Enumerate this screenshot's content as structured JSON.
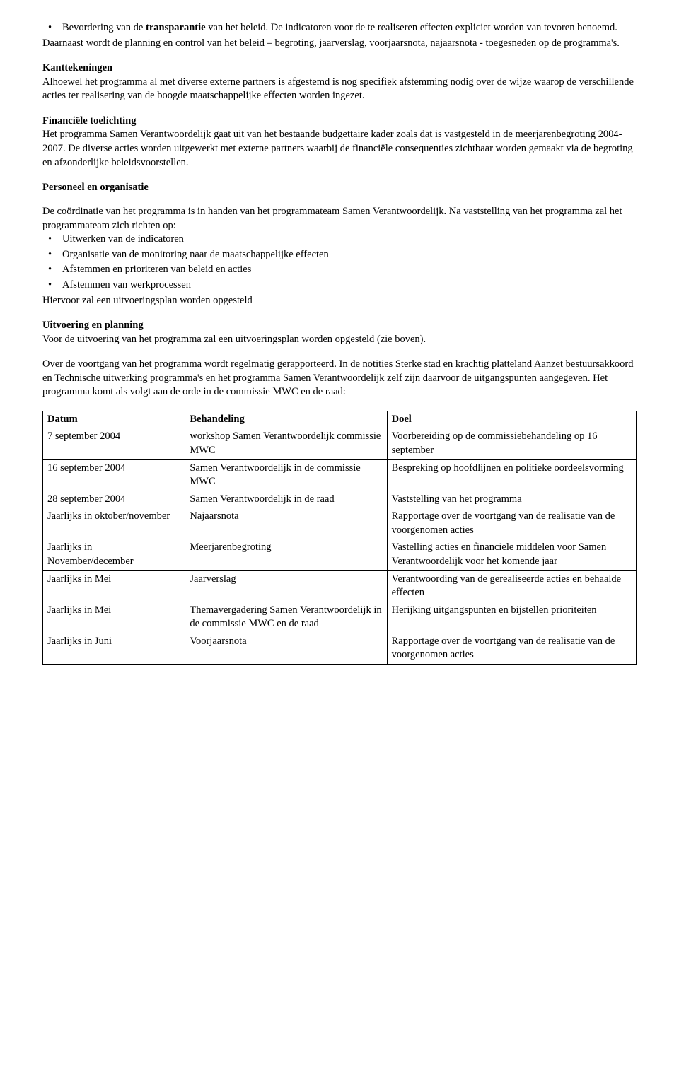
{
  "top_bullet": {
    "prefix": "Bevordering van de ",
    "bold": "transparantie",
    "rest": " van het beleid. De indicatoren voor de te realiseren effecten expliciet worden van tevoren benoemd."
  },
  "top_para": "Daarnaast wordt de planning en control van het beleid – begroting, jaarverslag, voorjaarsnota, najaarsnota - toegesneden op de programma's.",
  "kant": {
    "heading": "Kanttekeningen",
    "body": "Alhoewel het programma al met diverse externe partners is afgestemd is nog specifiek afstemming nodig over de wijze waarop de verschillende acties ter realisering van de boogde maatschappelijke effecten worden ingezet."
  },
  "fin": {
    "heading": "Financiële toelichting",
    "body": "Het programma Samen Verantwoordelijk gaat uit van het bestaande budgettaire kader zoals dat is vastgesteld in de meerjarenbegroting 2004-2007. De diverse acties worden uitgewerkt met externe partners waarbij de financiële consequenties zichtbaar worden gemaakt via de begroting en afzonderlijke beleidsvoorstellen."
  },
  "pers": {
    "heading": "Personeel en organisatie",
    "intro": "De coördinatie van het programma is in handen van het programmateam Samen Verantwoordelijk. Na vaststelling van het programma zal het programmateam zich richten op:",
    "items": [
      "Uitwerken van de indicatoren",
      "Organisatie van de monitoring naar de maatschappelijke effecten",
      "Afstemmen en prioriteren van beleid en acties",
      "Afstemmen van werkprocessen"
    ],
    "outro": " Hiervoor zal een uitvoeringsplan worden opgesteld"
  },
  "uitv": {
    "heading": "Uitvoering en planning",
    "line1": "Voor de uitvoering van het programma zal een uitvoeringsplan worden opgesteld (zie boven).",
    "line2": "Over de voortgang van het programma wordt regelmatig gerapporteerd. In de notities Sterke stad en krachtig platteland Aanzet bestuursakkoord en Technische uitwerking programma's en het programma Samen Verantwoordelijk zelf zijn daarvoor de uitgangspunten  aangegeven. Het programma komt als volgt aan de orde in de commissie MWC en de raad:"
  },
  "table": {
    "columns": [
      "Datum",
      "Behandeling",
      "Doel"
    ],
    "rows": [
      [
        "7 september 2004",
        "workshop Samen Verantwoordelijk commissie MWC",
        "Voorbereiding op de commissiebehandeling op 16 september"
      ],
      [
        "16 september 2004",
        "Samen Verantwoordelijk in de commissie MWC",
        "Bespreking op hoofdlijnen en politieke oordeelsvorming"
      ],
      [
        "28 september 2004",
        "Samen Verantwoordelijk in de raad",
        "Vaststelling van het programma"
      ],
      [
        "Jaarlijks in oktober/november",
        "Najaarsnota",
        "Rapportage over de voortgang van de realisatie van de voorgenomen acties"
      ],
      [
        "Jaarlijks in November/december",
        "Meerjarenbegroting",
        "Vastelling acties en financiele middelen voor Samen Verantwoordelijk voor het komende jaar"
      ],
      [
        "Jaarlijks in Mei",
        "Jaarverslag",
        "Verantwoording van de gerealiseerde acties en behaalde effecten"
      ],
      [
        "Jaarlijks in Mei",
        "Themavergadering Samen Verantwoordelijk in de commissie MWC en de raad",
        "Herijking uitgangspunten en bijstellen prioriteiten"
      ],
      [
        "Jaarlijks in Juni",
        "Voorjaarsnota",
        "Rapportage over de voortgang van de realisatie van de voorgenomen acties"
      ]
    ]
  }
}
